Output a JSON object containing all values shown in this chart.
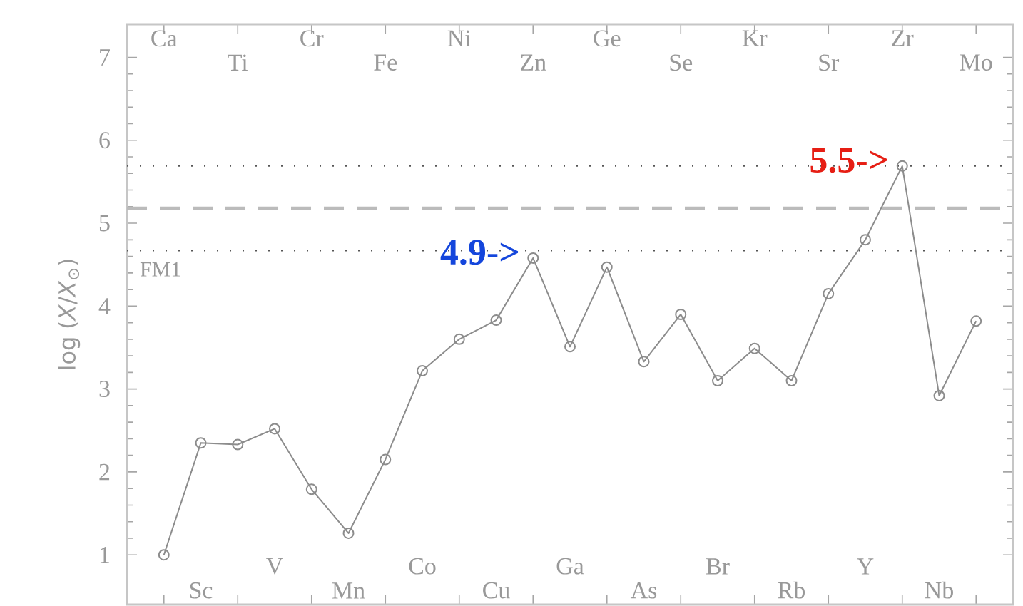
{
  "chart_data": {
    "type": "line",
    "categories": [
      "Ca",
      "Sc",
      "Ti",
      "V",
      "Cr",
      "Mn",
      "Fe",
      "Co",
      "Ni",
      "Cu",
      "Zn",
      "Ga",
      "Ge",
      "As",
      "Se",
      "Br",
      "Kr",
      "Rb",
      "Sr",
      "Y",
      "Zr",
      "Nb",
      "Mo"
    ],
    "series": [
      {
        "color": "#8c8c8c",
        "values": [
          1.0,
          2.35,
          2.33,
          2.52,
          1.79,
          1.26,
          2.15,
          3.22,
          3.6,
          3.83,
          4.58,
          3.51,
          4.47,
          3.33,
          3.9,
          3.1,
          3.49,
          3.1,
          4.15,
          4.8,
          5.69,
          2.92,
          3.82
        ]
      }
    ],
    "ylabel": "log (*X*/*X*$_{⊙}$)",
    "ylim": [
      0.4,
      7.4
    ],
    "yticks": [
      1,
      2,
      3,
      4,
      5,
      6,
      7
    ],
    "marker": "circle",
    "line_style": "solid",
    "ref_lines": [
      {
        "axis": "y",
        "value": 5.69,
        "line_style": "dotted",
        "color": "#555555"
      },
      {
        "axis": "y",
        "value": 5.18,
        "line_style": "dashed",
        "color": "#bbbbbb"
      },
      {
        "axis": "y",
        "value": 4.67,
        "line_style": "dotted",
        "color": "#555555"
      }
    ],
    "annotations": [
      {
        "text": "4.9->",
        "x": "Zn",
        "y": 4.58
      },
      {
        "text": "5.5->",
        "x": "Zr",
        "y": 5.69
      },
      "FM1"
    ]
  }
}
